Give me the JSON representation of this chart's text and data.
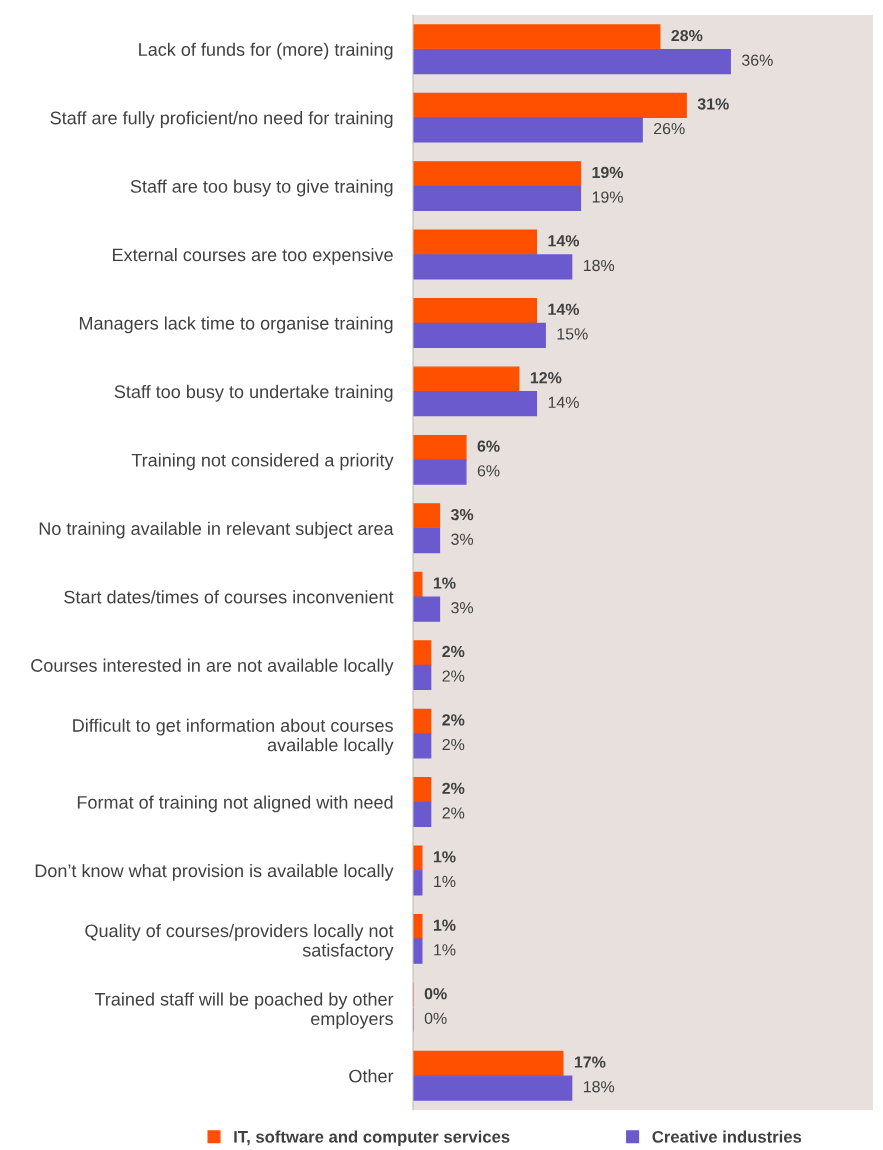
{
  "chart_data": {
    "type": "bar",
    "orientation": "horizontal",
    "categories": [
      "Lack of funds for (more) training",
      "Staff are fully proficient/no need for training",
      "Staff are too busy to give training",
      "External courses are too expensive",
      "Managers lack time to organise training",
      "Staff too busy to undertake training",
      "Training not considered a priority",
      "No training available in relevant subject area",
      "Start dates/times of courses inconvenient",
      "Courses interested in are not available locally",
      "Difficult to get information about courses available locally",
      "Format of training not aligned with need",
      "Don’t know what provision is available locally",
      "Quality of courses/providers locally not satisfactory",
      "Trained staff will be poached by other employers",
      "Other"
    ],
    "series": [
      {
        "name": "IT, software and computer services",
        "color": "#ff5000",
        "values": [
          28,
          31,
          19,
          14,
          14,
          12,
          6,
          3,
          1,
          2,
          2,
          2,
          1,
          1,
          0,
          17
        ],
        "value_labels": [
          "28%",
          "31%",
          "19%",
          "14%",
          "14%",
          "12%",
          "6%",
          "3%",
          "1%",
          "2%",
          "2%",
          "2%",
          "1%",
          "1%",
          "0%",
          "17%"
        ]
      },
      {
        "name": "Creative industries",
        "color": "#6a5acd",
        "values": [
          36,
          26,
          19,
          18,
          15,
          14,
          6,
          3,
          3,
          2,
          2,
          2,
          1,
          1,
          0,
          18
        ],
        "value_labels": [
          "36%",
          "26%",
          "19%",
          "18%",
          "15%",
          "14%",
          "6%",
          "3%",
          "3%",
          "2%",
          "2%",
          "2%",
          "1%",
          "1%",
          "0%",
          "18%"
        ]
      }
    ],
    "legend": "bottom",
    "grid": false
  }
}
